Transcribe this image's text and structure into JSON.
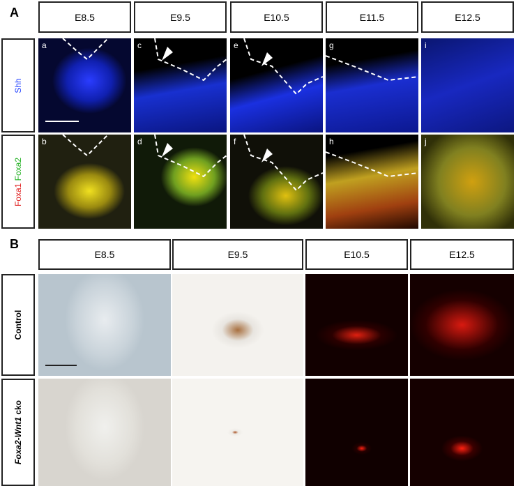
{
  "panel_a": {
    "label": "A",
    "columns": [
      "E8.5",
      "E9.5",
      "E10.5",
      "E11.5",
      "E12.5"
    ],
    "rows": [
      {
        "label_parts": [
          "Shh"
        ]
      },
      {
        "label_parts": [
          "Foxa1",
          "Foxa2"
        ]
      }
    ],
    "panel_letters": [
      [
        "a",
        "c",
        "e",
        "g",
        "i"
      ],
      [
        "b",
        "d",
        "f",
        "h",
        "j"
      ]
    ]
  },
  "panel_b": {
    "label": "B",
    "columns": [
      "E8.5",
      "E9.5",
      "E10.5",
      "E12.5"
    ],
    "rows": [
      {
        "label_parts": [
          "Control"
        ]
      },
      {
        "label_parts": [
          "Foxa2-Wnt1",
          "cko"
        ]
      }
    ]
  }
}
